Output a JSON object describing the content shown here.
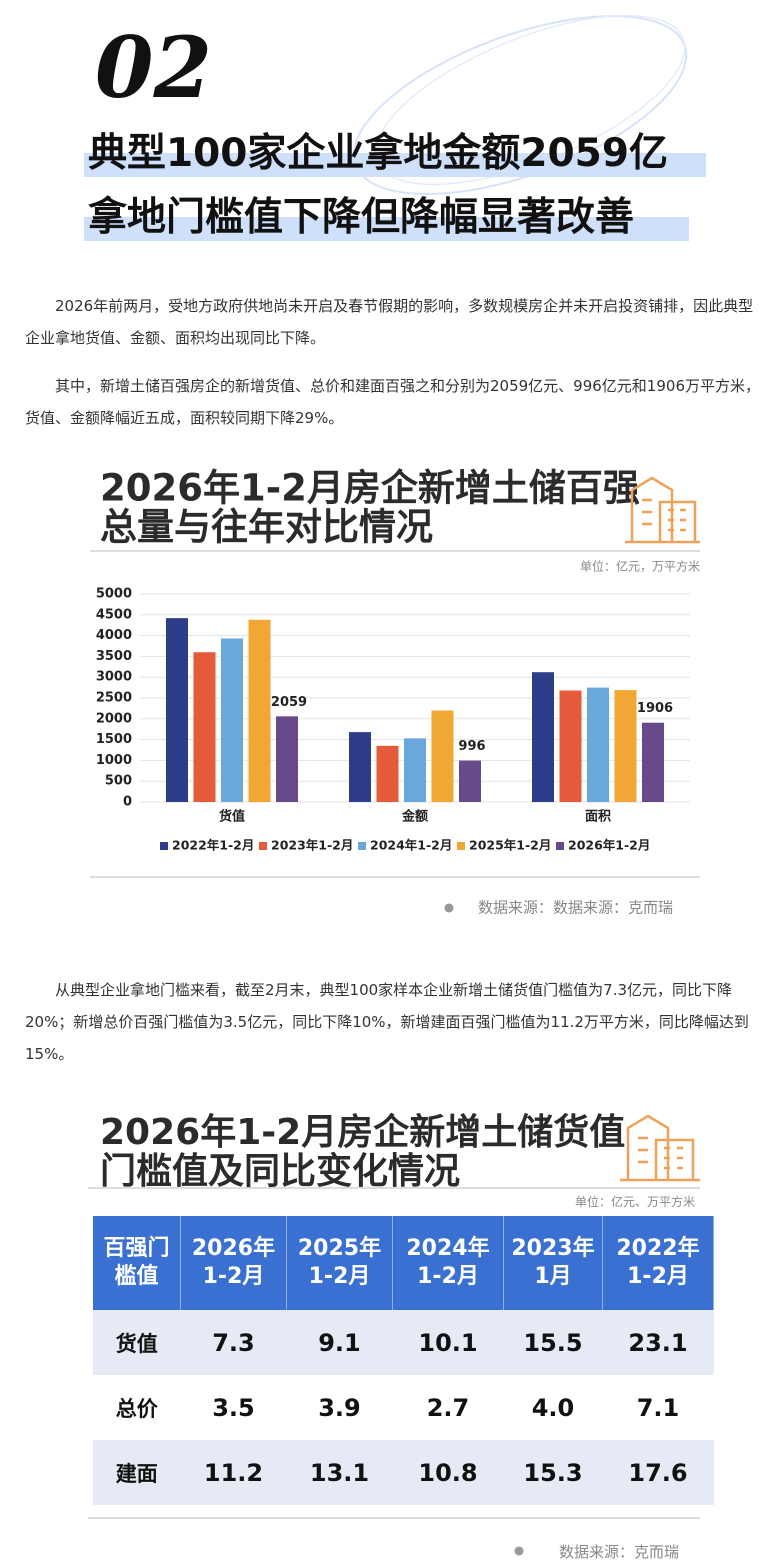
{
  "header": {
    "number": "02",
    "headline": [
      "典型100家企业拿地金额2059亿",
      "拿地门槛值下降但降幅显著改善"
    ]
  },
  "paragraphs": [
    "2026年前两月，受地方政府供地尚未开启及春节假期的影响，多数规模房企并未开启投资铺排，因此典型企业拿地货值、金额、面积均出现同比下降。",
    "其中，新增土储百强房企的新增货值、总价和建面百强之和分别为2059亿元、996亿元和1906万平方米，货值、金额降幅近五成，面积较同期下降29%。",
    "从典型企业拿地门槛来看，截至2月末，典型100家样本企业新增土储货值门槛值为7.3亿元，同比下降20%；新增总价百强门槛值为3.5亿元，同比下降10%，新增建面百强门槛值为11.2万平方米，同比降幅达到15%。"
  ],
  "chart_data": {
    "type": "bar",
    "title": [
      "2026年1-2月房企新增土储百强",
      "总量与往年对比情况"
    ],
    "unit": "单位：亿元，万平方米",
    "source": "数据来源：数据来源：克而瑞",
    "categories": [
      "货值",
      "金额",
      "面积"
    ],
    "series": [
      {
        "name": "2022年1-2月",
        "color": "#2e3d8a",
        "values": [
          4420,
          1680,
          3120
        ]
      },
      {
        "name": "2023年1-2月",
        "color": "#e55a3a",
        "values": [
          3600,
          1350,
          2680
        ]
      },
      {
        "name": "2024年1-2月",
        "color": "#6aa7dd",
        "values": [
          3930,
          1530,
          2750
        ]
      },
      {
        "name": "2025年1-2月",
        "color": "#f0a733",
        "values": [
          4380,
          2200,
          2690
        ]
      },
      {
        "name": "2026年1-2月",
        "color": "#684a8a",
        "values": [
          2059,
          996,
          1906
        ],
        "data_labels": true
      }
    ],
    "ylim": [
      0,
      5000
    ],
    "yticks": [
      0,
      500,
      1000,
      1500,
      2000,
      2500,
      3000,
      3500,
      4000,
      4500,
      5000
    ],
    "grid": true
  },
  "table": {
    "title": [
      "2026年1-2月房企新增土储货值",
      "门槛值及同比变化情况"
    ],
    "unit": "单位：亿元、万平方米",
    "source": "数据来源：克而瑞",
    "header": [
      "百强门\n槛值",
      "2026年\n1-2月",
      "2025年\n1-2月",
      "2024年\n1-2月",
      "2023年\n1月",
      "2022年\n1-2月"
    ],
    "rows": [
      [
        "货值",
        "7.3",
        "9.1",
        "10.1",
        "15.5",
        "23.1"
      ],
      [
        "总价",
        "3.5",
        "3.9",
        "2.7",
        "4.0",
        "7.1"
      ],
      [
        "建面",
        "11.2",
        "13.1",
        "10.8",
        "15.3",
        "17.6"
      ]
    ]
  }
}
